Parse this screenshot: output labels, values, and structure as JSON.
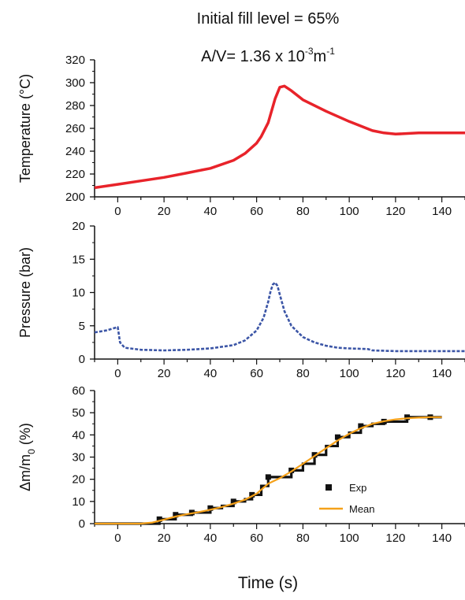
{
  "title_line1": "Initial fill level = 65%",
  "title_line2_prefix": "A/V= 1.36 x 10",
  "title_line2_exp": "-3",
  "title_line2_unit": "m",
  "title_line2_unit_exp": "-1",
  "xlabel": "Time (s)",
  "chart_data": [
    {
      "type": "line",
      "ylabel": "Temperature (°C)",
      "xlim": [
        -10,
        150
      ],
      "ylim": [
        200,
        320
      ],
      "xticks": [
        0,
        20,
        40,
        60,
        80,
        100,
        120,
        140
      ],
      "yticks": [
        200,
        220,
        240,
        260,
        280,
        300,
        320
      ],
      "color": "#e8232a",
      "series": [
        {
          "x": [
            -10,
            0,
            10,
            20,
            30,
            40,
            50,
            55,
            60,
            62,
            65,
            68,
            70,
            72,
            75,
            80,
            90,
            100,
            110,
            115,
            120,
            130,
            140,
            150
          ],
          "values": [
            208,
            211,
            214,
            217,
            221,
            225,
            232,
            238,
            247,
            253,
            265,
            286,
            296,
            297,
            293,
            285,
            275,
            266,
            258,
            256,
            255,
            256,
            256,
            256
          ]
        }
      ]
    },
    {
      "type": "line",
      "ylabel": "Pressure (bar)",
      "xlim": [
        -10,
        150
      ],
      "ylim": [
        0,
        20
      ],
      "xticks": [
        0,
        20,
        40,
        60,
        80,
        100,
        120,
        140
      ],
      "yticks": [
        0,
        5,
        10,
        15,
        20
      ],
      "color": "#3b55a6",
      "series": [
        {
          "x": [
            -10,
            -5,
            -1,
            0,
            1,
            3,
            10,
            20,
            30,
            40,
            50,
            55,
            60,
            63,
            65,
            66,
            67,
            68,
            69,
            70,
            72,
            75,
            80,
            85,
            90,
            95,
            100,
            108,
            110,
            120,
            130,
            140,
            150
          ],
          "values": [
            4.0,
            4.3,
            4.7,
            4.8,
            2.5,
            1.7,
            1.4,
            1.3,
            1.4,
            1.6,
            2.1,
            2.8,
            4.3,
            6.2,
            8.6,
            10.2,
            11.2,
            11.5,
            11.0,
            9.7,
            7.2,
            5.0,
            3.3,
            2.5,
            2.0,
            1.7,
            1.6,
            1.5,
            1.3,
            1.2,
            1.2,
            1.2,
            1.2
          ]
        }
      ]
    },
    {
      "type": "line",
      "ylabel": "Δm/m0 (%)",
      "xlim": [
        -10,
        150
      ],
      "ylim": [
        0,
        60
      ],
      "xticks": [
        0,
        20,
        40,
        60,
        80,
        100,
        120,
        140
      ],
      "yticks": [
        0,
        10,
        20,
        30,
        40,
        50,
        60
      ],
      "legend_position": "right",
      "series": [
        {
          "name": "Exp",
          "kind": "step",
          "color": "#111111",
          "x": [
            -10,
            0,
            10,
            15,
            18,
            22,
            25,
            28,
            32,
            35,
            40,
            45,
            50,
            55,
            58,
            62,
            65,
            70,
            75,
            80,
            85,
            90,
            95,
            100,
            105,
            110,
            115,
            120,
            125,
            130,
            135,
            140
          ],
          "values": [
            0,
            0,
            0,
            0,
            2,
            2,
            4,
            4,
            5,
            5,
            7,
            8,
            10,
            11,
            13,
            17,
            21,
            21,
            24,
            27,
            31,
            35,
            39,
            41,
            44,
            45,
            46,
            46,
            48,
            48,
            48,
            48
          ]
        },
        {
          "name": "Mean",
          "kind": "line",
          "color": "#f5a11a",
          "x": [
            -10,
            0,
            10,
            15,
            20,
            25,
            30,
            35,
            40,
            45,
            50,
            55,
            60,
            65,
            70,
            75,
            80,
            85,
            90,
            95,
            100,
            105,
            110,
            115,
            120,
            125,
            130,
            135,
            140
          ],
          "values": [
            0,
            0,
            0,
            0.5,
            1.8,
            3.2,
            4.3,
            5.2,
            6.3,
            7.5,
            9.0,
            10.8,
            13.5,
            18.0,
            20.5,
            23.5,
            27.0,
            30.5,
            34.0,
            37.5,
            40.5,
            43.0,
            45.0,
            46.2,
            47.0,
            47.5,
            47.8,
            48.0,
            48.0
          ]
        }
      ]
    }
  ]
}
